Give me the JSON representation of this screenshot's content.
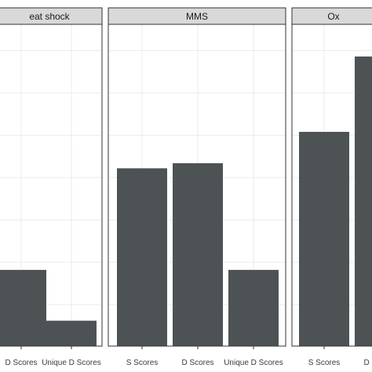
{
  "chart_data": {
    "type": "bar",
    "layout": "faceted panels sharing a y axis, axis labels and ticks cropped out of view",
    "grid": true,
    "colors": {
      "bar": "#4d5355",
      "strip": "#d9d9d9",
      "grid": "#ebebeb",
      "border": "#333333"
    },
    "ylim": [
      0,
      7.6
    ],
    "panels": [
      {
        "strip": "eat shock",
        "categories": [
          "D Scores",
          "Unique D Scores"
        ],
        "values": [
          1.8,
          0.6
        ]
      },
      {
        "strip": "MMS",
        "categories": [
          "S Scores",
          "D Scores",
          "Unique D Scores"
        ],
        "values": [
          4.2,
          4.32,
          1.8
        ]
      },
      {
        "strip": "Ox",
        "categories": [
          "S Scores",
          "D Scores"
        ],
        "values": [
          5.06,
          6.84
        ]
      }
    ]
  }
}
